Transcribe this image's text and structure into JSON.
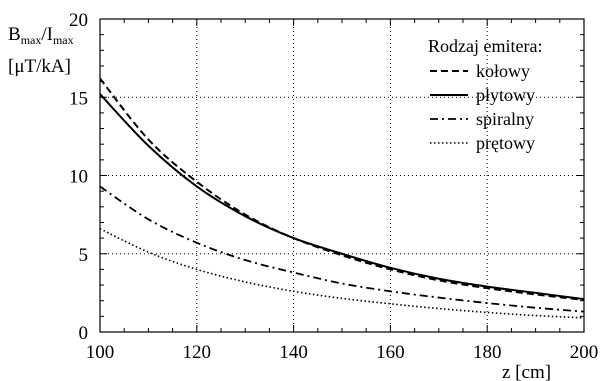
{
  "chart_data": {
    "type": "line",
    "ylabel_main": "B",
    "ylabel_sub1": "max",
    "ylabel_sep": "/I",
    "ylabel_sub2": "max",
    "ylabel_units": "[μT/kA]",
    "xlabel": "z [cm]",
    "xlim": [
      100,
      200
    ],
    "ylim": [
      0,
      20
    ],
    "x_ticks": [
      100,
      120,
      140,
      160,
      180,
      200
    ],
    "y_ticks": [
      0,
      5,
      10,
      15,
      20
    ],
    "grid": true,
    "legend_title": "Rodzaj emitera:",
    "legend_position": "top-right",
    "series": [
      {
        "name": "kołowy",
        "style": "dashed",
        "x": [
          100,
          110,
          120,
          130,
          140,
          150,
          160,
          170,
          180,
          190,
          200
        ],
        "values": [
          16.2,
          12.3,
          9.6,
          7.5,
          6.0,
          4.9,
          4.0,
          3.3,
          2.8,
          2.4,
          2.05
        ]
      },
      {
        "name": "płytowy",
        "style": "solid",
        "x": [
          100,
          110,
          120,
          130,
          140,
          150,
          160,
          170,
          180,
          190,
          200
        ],
        "values": [
          15.2,
          11.9,
          9.3,
          7.4,
          6.0,
          5.0,
          4.1,
          3.4,
          2.9,
          2.5,
          2.1
        ]
      },
      {
        "name": "spiralny",
        "style": "dashdot",
        "x": [
          100,
          110,
          120,
          130,
          140,
          150,
          160,
          170,
          180,
          190,
          200
        ],
        "values": [
          9.3,
          7.2,
          5.7,
          4.6,
          3.8,
          3.1,
          2.6,
          2.2,
          1.85,
          1.55,
          1.3
        ]
      },
      {
        "name": "prętowy",
        "style": "dotted",
        "x": [
          100,
          110,
          120,
          130,
          140,
          150,
          160,
          170,
          180,
          190,
          200
        ],
        "values": [
          6.6,
          5.1,
          4.0,
          3.2,
          2.6,
          2.15,
          1.8,
          1.5,
          1.25,
          1.05,
          0.9
        ]
      }
    ]
  }
}
